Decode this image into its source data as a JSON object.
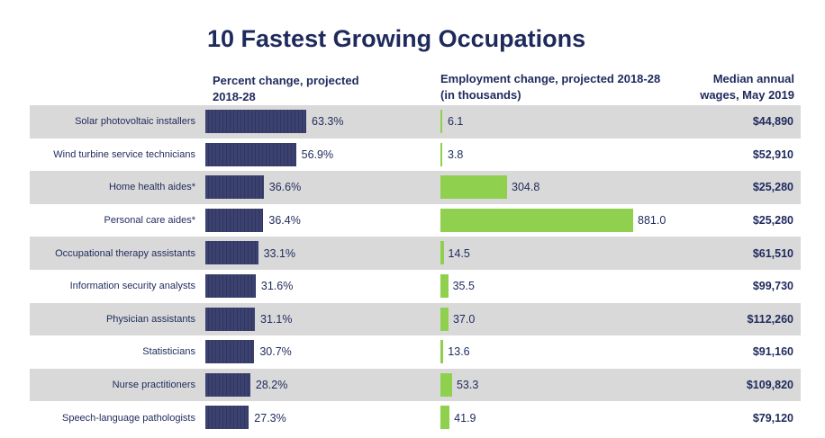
{
  "chart_data": {
    "type": "table",
    "title": "10 Fastest Growing Occupations",
    "columns": {
      "percent": "Percent change, projected 2018-28",
      "employment": "Employment change, projected 2018-28 (in thousands)",
      "wage": "Median annual wages, May 2019"
    },
    "header_lines": {
      "percent": [
        "Percent change, projected",
        "2018-28"
      ],
      "employment": [
        "Employment change, projected 2018-28",
        "(in thousands)"
      ],
      "wage": [
        "Median annual",
        "wages, May 2019"
      ]
    },
    "rows": [
      {
        "occupation": "Solar photovoltaic installers",
        "percent": 63.3,
        "percent_label": "63.3%",
        "employment": 6.1,
        "employment_label": "6.1",
        "wage": "$44,890"
      },
      {
        "occupation": "Wind turbine service technicians",
        "percent": 56.9,
        "percent_label": "56.9%",
        "employment": 3.8,
        "employment_label": "3.8",
        "wage": "$52,910"
      },
      {
        "occupation": "Home health aides*",
        "percent": 36.6,
        "percent_label": "36.6%",
        "employment": 304.8,
        "employment_label": "304.8",
        "wage": "$25,280"
      },
      {
        "occupation": "Personal care aides*",
        "percent": 36.4,
        "percent_label": "36.4%",
        "employment": 881.0,
        "employment_label": "881.0",
        "wage": "$25,280"
      },
      {
        "occupation": "Occupational therapy assistants",
        "percent": 33.1,
        "percent_label": "33.1%",
        "employment": 14.5,
        "employment_label": "14.5",
        "wage": "$61,510"
      },
      {
        "occupation": "Information security analysts",
        "percent": 31.6,
        "percent_label": "31.6%",
        "employment": 35.5,
        "employment_label": "35.5",
        "wage": "$99,730"
      },
      {
        "occupation": "Physician assistants",
        "percent": 31.1,
        "percent_label": "31.1%",
        "employment": 37.0,
        "employment_label": "37.0",
        "wage": "$112,260"
      },
      {
        "occupation": "Statisticians",
        "percent": 30.7,
        "percent_label": "30.7%",
        "employment": 13.6,
        "employment_label": "13.6",
        "wage": "$91,160"
      },
      {
        "occupation": "Nurse practitioners",
        "percent": 28.2,
        "percent_label": "28.2%",
        "employment": 53.3,
        "employment_label": "53.3",
        "wage": "$109,820"
      },
      {
        "occupation": "Speech-language pathologists",
        "percent": 27.3,
        "percent_label": "27.3%",
        "employment": 41.9,
        "employment_label": "41.9",
        "wage": "$79,120"
      }
    ],
    "colors": {
      "percent_bar": "#3c4270",
      "employment_bar": "#8fd14f",
      "alt_row": "#d9d9d9",
      "text": "#1f2a5c"
    }
  }
}
